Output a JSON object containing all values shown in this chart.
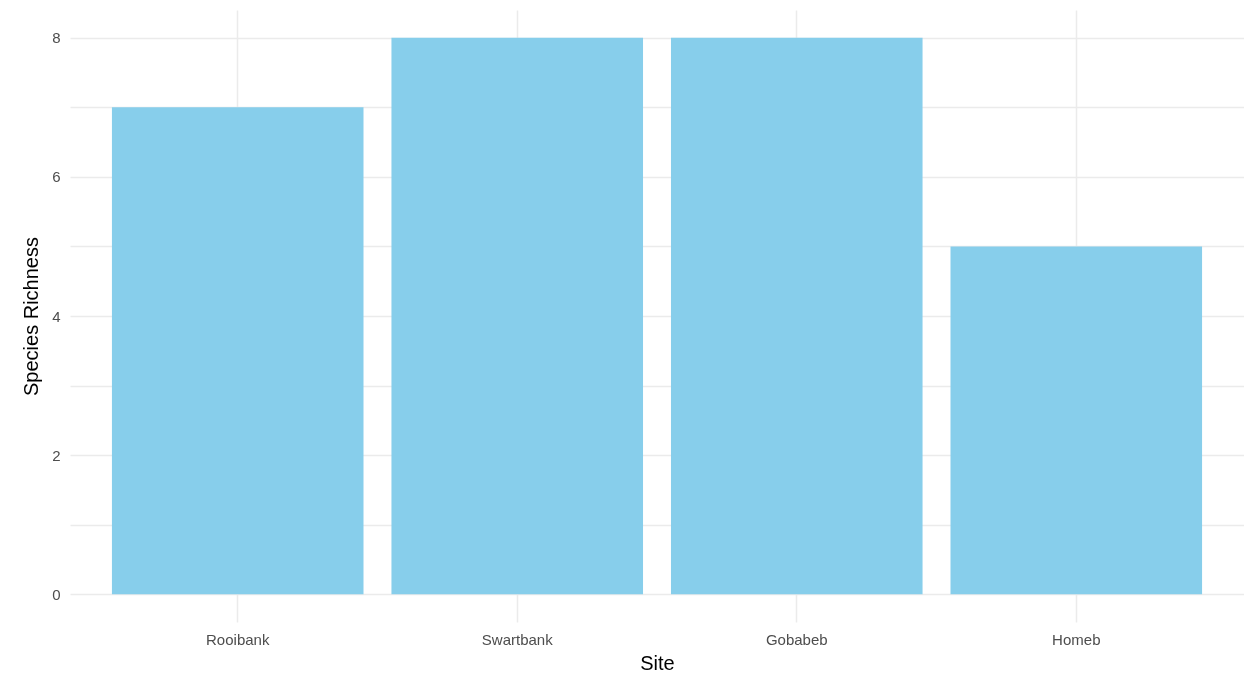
{
  "chart_data": {
    "type": "bar",
    "xlabel": "Site",
    "ylabel": "Species Richness",
    "categories": [
      "Rooibank",
      "Swartbank",
      "Gobabeb",
      "Homeb"
    ],
    "values": [
      7,
      8,
      8,
      5
    ],
    "color": "#87ceeb",
    "ylim": [
      -0.4,
      8.4
    ],
    "yticks": [
      0,
      {
        "value": 1,
        "label": null
      },
      2,
      {
        "value": 3,
        "label": null
      },
      4,
      {
        "value": 5,
        "label": null
      },
      6,
      {
        "value": 7,
        "label": null
      },
      8
    ],
    "grid": true
  }
}
